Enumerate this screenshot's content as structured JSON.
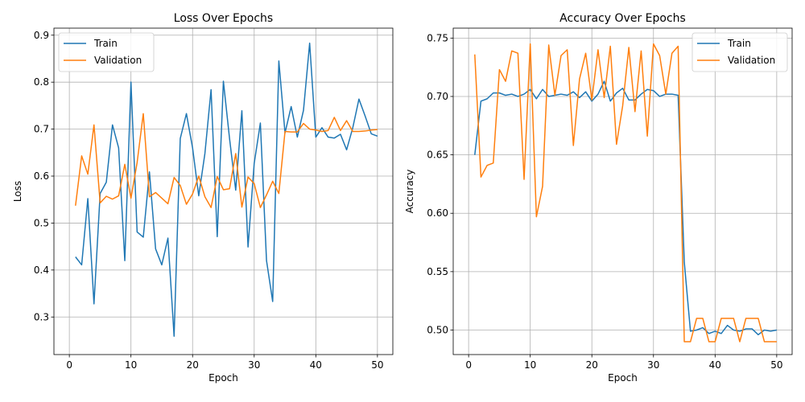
{
  "colors": {
    "train": "#1f77b4",
    "validation": "#ff7f0e",
    "grid": "#b0b0b0"
  },
  "chart_data": [
    {
      "type": "line",
      "title": "Loss Over Epochs",
      "xlabel": "Epoch",
      "ylabel": "Loss",
      "xlim": [
        -2.5,
        52.5
      ],
      "ylim": [
        0.22,
        0.915
      ],
      "xticks": [
        0,
        10,
        20,
        30,
        40,
        50
      ],
      "yticks": [
        0.3,
        0.4,
        0.5,
        0.6,
        0.7,
        0.8,
        0.9
      ],
      "xtick_labels": [
        "0",
        "10",
        "20",
        "30",
        "40",
        "50"
      ],
      "ytick_labels": [
        "0.3",
        "0.4",
        "0.5",
        "0.6",
        "0.7",
        "0.8",
        "0.9"
      ],
      "grid": true,
      "legend_position": "upper-left",
      "x": [
        1,
        2,
        3,
        4,
        5,
        6,
        7,
        8,
        9,
        10,
        11,
        12,
        13,
        14,
        15,
        16,
        17,
        18,
        19,
        20,
        21,
        22,
        23,
        24,
        25,
        26,
        27,
        28,
        29,
        30,
        31,
        32,
        33,
        34,
        35,
        36,
        37,
        38,
        39,
        40,
        41,
        42,
        43,
        44,
        45,
        46,
        47,
        48,
        49,
        50
      ],
      "series": [
        {
          "name": "Train",
          "color_key": "train",
          "values": [
            0.428,
            0.411,
            0.552,
            0.328,
            0.563,
            0.587,
            0.709,
            0.66,
            0.42,
            0.8,
            0.481,
            0.47,
            0.609,
            0.445,
            0.411,
            0.468,
            0.259,
            0.68,
            0.733,
            0.66,
            0.558,
            0.648,
            0.784,
            0.471,
            0.802,
            0.68,
            0.57,
            0.739,
            0.449,
            0.627,
            0.713,
            0.42,
            0.333,
            0.845,
            0.692,
            0.748,
            0.683,
            0.74,
            0.883,
            0.683,
            0.703,
            0.683,
            0.681,
            0.689,
            0.656,
            0.703,
            0.764,
            0.728,
            0.69,
            0.685
          ]
        },
        {
          "name": "Validation",
          "color_key": "validation",
          "values": [
            0.537,
            0.643,
            0.604,
            0.709,
            0.543,
            0.557,
            0.551,
            0.558,
            0.625,
            0.553,
            0.629,
            0.733,
            0.556,
            0.565,
            0.553,
            0.541,
            0.597,
            0.58,
            0.54,
            0.562,
            0.6,
            0.556,
            0.533,
            0.599,
            0.571,
            0.573,
            0.648,
            0.534,
            0.598,
            0.584,
            0.533,
            0.56,
            0.589,
            0.563,
            0.695,
            0.694,
            0.694,
            0.712,
            0.7,
            0.698,
            0.695,
            0.697,
            0.725,
            0.697,
            0.718,
            0.695,
            0.695,
            0.696,
            0.698,
            0.699
          ]
        }
      ]
    },
    {
      "type": "line",
      "title": "Accuracy Over Epochs",
      "xlabel": "Epoch",
      "ylabel": "Accuracy",
      "xlim": [
        -2.5,
        52.5
      ],
      "ylim": [
        0.479,
        0.7585
      ],
      "xticks": [
        0,
        10,
        20,
        30,
        40,
        50
      ],
      "yticks": [
        0.5,
        0.55,
        0.6,
        0.65,
        0.7,
        0.75
      ],
      "xtick_labels": [
        "0",
        "10",
        "20",
        "30",
        "40",
        "50"
      ],
      "ytick_labels": [
        "0.50",
        "0.55",
        "0.60",
        "0.65",
        "0.70",
        "0.75"
      ],
      "grid": true,
      "legend_position": "upper-right",
      "x": [
        1,
        2,
        3,
        4,
        5,
        6,
        7,
        8,
        9,
        10,
        11,
        12,
        13,
        14,
        15,
        16,
        17,
        18,
        19,
        20,
        21,
        22,
        23,
        24,
        25,
        26,
        27,
        28,
        29,
        30,
        31,
        32,
        33,
        34,
        35,
        36,
        37,
        38,
        39,
        40,
        41,
        42,
        43,
        44,
        45,
        46,
        47,
        48,
        49,
        50
      ],
      "series": [
        {
          "name": "Train",
          "color_key": "train",
          "values": [
            0.65,
            0.696,
            0.698,
            0.703,
            0.703,
            0.701,
            0.702,
            0.7,
            0.702,
            0.706,
            0.698,
            0.706,
            0.7,
            0.701,
            0.702,
            0.701,
            0.704,
            0.699,
            0.704,
            0.696,
            0.702,
            0.713,
            0.696,
            0.703,
            0.707,
            0.697,
            0.697,
            0.702,
            0.706,
            0.705,
            0.7,
            0.702,
            0.702,
            0.701,
            0.558,
            0.499,
            0.5,
            0.502,
            0.497,
            0.499,
            0.497,
            0.504,
            0.5,
            0.499,
            0.501,
            0.501,
            0.496,
            0.5,
            0.499,
            0.5
          ]
        },
        {
          "name": "Validation",
          "color_key": "validation",
          "values": [
            0.736,
            0.631,
            0.641,
            0.643,
            0.723,
            0.713,
            0.739,
            0.737,
            0.629,
            0.745,
            0.597,
            0.623,
            0.744,
            0.701,
            0.735,
            0.74,
            0.658,
            0.715,
            0.737,
            0.697,
            0.74,
            0.699,
            0.743,
            0.659,
            0.692,
            0.742,
            0.687,
            0.739,
            0.666,
            0.745,
            0.735,
            0.702,
            0.737,
            0.743,
            0.49,
            0.49,
            0.51,
            0.51,
            0.49,
            0.49,
            0.51,
            0.51,
            0.51,
            0.49,
            0.51,
            0.51,
            0.51,
            0.49,
            0.49,
            0.49
          ]
        }
      ]
    }
  ]
}
